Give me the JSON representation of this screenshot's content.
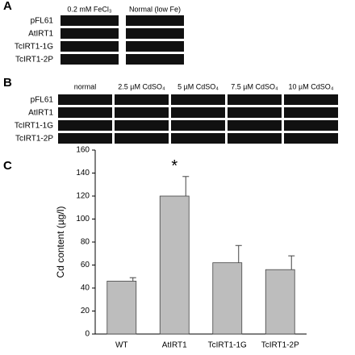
{
  "panel_a": {
    "label": "A",
    "columns": [
      "0.2 mM FeCl₃",
      "Normal (low Fe)"
    ],
    "rows": [
      "pFL61",
      "AtIRT1",
      "TcIRT1-1G",
      "TcIRT1-2P"
    ]
  },
  "panel_b": {
    "label": "B",
    "columns": [
      "normal",
      "2.5 µM CdSO₄",
      "5 µM CdSO₄",
      "7.5 µM CdSO₄",
      "10 µM CdSO₄"
    ],
    "rows": [
      "pFL61",
      "AtIRT1",
      "TcIRT1-1G",
      "TcIRT1-2P"
    ]
  },
  "panel_c": {
    "label": "C"
  },
  "chart_data": {
    "type": "bar",
    "y_label": "Cd content (µg/l)",
    "categories": [
      "WT",
      "AtIRT1",
      "TcIRT1-1G",
      "TcIRT1-2P"
    ],
    "values": [
      46,
      120,
      62,
      56
    ],
    "errors": [
      3,
      17,
      15,
      12
    ],
    "color": "#bdbdbd",
    "annotation": {
      "text": "*",
      "category": "AtIRT1"
    },
    "ylim": [
      0,
      160
    ],
    "yticks": [
      0,
      20,
      40,
      60,
      80,
      100,
      120,
      140,
      160
    ]
  }
}
